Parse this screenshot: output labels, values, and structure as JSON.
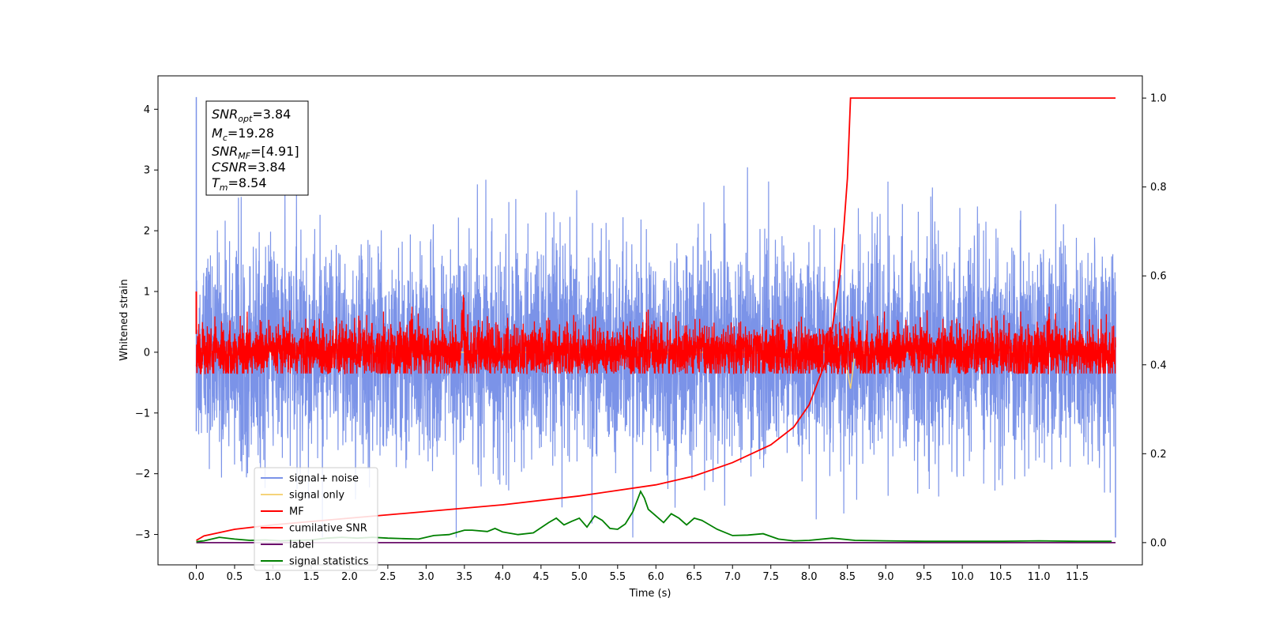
{
  "chart_data": {
    "type": "line",
    "xlabel": "Time (s)",
    "ylabel": "Whitened strain",
    "xlim": [
      -0.5,
      12.35
    ],
    "ylim": [
      -3.5,
      4.55
    ],
    "y2lim": [
      -0.05,
      1.05
    ],
    "xticks": [
      "0.0",
      "0.5",
      "1.0",
      "1.5",
      "2.0",
      "2.5",
      "3.0",
      "3.5",
      "4.0",
      "4.5",
      "5.0",
      "5.5",
      "6.0",
      "6.5",
      "7.0",
      "7.5",
      "8.0",
      "8.5",
      "9.0",
      "9.5",
      "10.0",
      "10.5",
      "11.0",
      "11.5"
    ],
    "yticks": [
      "−3",
      "−2",
      "−1",
      "0",
      "1",
      "2",
      "3",
      "4"
    ],
    "y2ticks": [
      "0.0",
      "0.2",
      "0.4",
      "0.6",
      "0.8",
      "1.0"
    ],
    "info_box": {
      "snr_opt": "=3.84",
      "mc": "=19.28",
      "snr_mf": "=[4.91]",
      "csnr": "=3.84",
      "tm": "=8.54"
    },
    "legend": {
      "position": "lower-left",
      "items": [
        {
          "label": "signal+ noise",
          "color": "#7b93e8"
        },
        {
          "label": "signal only",
          "color": "#f5d37a"
        },
        {
          "label": "MF",
          "color": "#ff0000"
        },
        {
          "label": "cumilative SNR",
          "color": "#ff0000"
        },
        {
          "label": "label",
          "color": "#6a0f6a"
        },
        {
          "label": "signal statistics",
          "color": "#008000"
        }
      ]
    },
    "series": [
      {
        "name": "signal+ noise",
        "color": "#7b93e8",
        "axis": "left",
        "x_range": [
          0.0,
          12.0
        ],
        "approx_amplitude_std": 0.85,
        "peak_min": -3.05,
        "peak_max": 4.2
      },
      {
        "name": "signal only",
        "color": "#f5d37a",
        "axis": "left",
        "x": [
          0.0,
          8.3,
          8.4,
          8.5,
          8.54,
          8.6,
          12.0
        ],
        "y": [
          0.0,
          0.0,
          0.1,
          -0.3,
          -0.6,
          0.0,
          0.0
        ]
      },
      {
        "name": "MF",
        "color": "#ff0000",
        "axis": "left",
        "x_range": [
          0.0,
          12.0
        ],
        "approx_amplitude_std": 0.22,
        "peak_min": -0.35,
        "peak_max": 1.0
      },
      {
        "name": "cumilative SNR",
        "color": "#ff0000",
        "axis": "right",
        "x": [
          0.0,
          0.1,
          0.5,
          1.0,
          2.0,
          3.0,
          4.0,
          5.0,
          6.0,
          6.5,
          7.0,
          7.5,
          7.8,
          8.0,
          8.2,
          8.3,
          8.4,
          8.45,
          8.5,
          8.54,
          12.0
        ],
        "y": [
          0.005,
          0.015,
          0.03,
          0.04,
          0.055,
          0.07,
          0.085,
          0.105,
          0.13,
          0.15,
          0.18,
          0.22,
          0.26,
          0.31,
          0.4,
          0.48,
          0.6,
          0.7,
          0.82,
          1.0,
          1.0
        ]
      },
      {
        "name": "label",
        "color": "#6a0f6a",
        "axis": "right",
        "x": [
          0.0,
          12.0
        ],
        "y": [
          0.0,
          0.0
        ]
      },
      {
        "name": "signal statistics",
        "color": "#008000",
        "axis": "right",
        "x": [
          0.0,
          0.1,
          0.3,
          0.5,
          0.7,
          0.9,
          1.1,
          1.3,
          1.5,
          1.7,
          1.9,
          2.1,
          2.3,
          2.5,
          2.7,
          2.9,
          3.1,
          3.3,
          3.5,
          3.6,
          3.8,
          3.9,
          4.0,
          4.2,
          4.4,
          4.6,
          4.7,
          4.8,
          4.9,
          5.0,
          5.1,
          5.2,
          5.3,
          5.4,
          5.5,
          5.6,
          5.7,
          5.8,
          5.85,
          5.9,
          6.0,
          6.1,
          6.2,
          6.3,
          6.4,
          6.5,
          6.6,
          6.8,
          7.0,
          7.2,
          7.4,
          7.6,
          7.8,
          8.0,
          8.3,
          8.6,
          9.0,
          9.5,
          10.0,
          10.5,
          11.0,
          11.5,
          11.95
        ],
        "y": [
          0.002,
          0.004,
          0.012,
          0.008,
          0.005,
          0.006,
          0.004,
          0.005,
          0.006,
          0.01,
          0.012,
          0.01,
          0.012,
          0.01,
          0.009,
          0.008,
          0.016,
          0.018,
          0.028,
          0.028,
          0.025,
          0.032,
          0.024,
          0.018,
          0.022,
          0.045,
          0.055,
          0.04,
          0.048,
          0.055,
          0.035,
          0.06,
          0.05,
          0.032,
          0.03,
          0.042,
          0.07,
          0.115,
          0.1,
          0.075,
          0.06,
          0.045,
          0.065,
          0.055,
          0.04,
          0.055,
          0.05,
          0.03,
          0.016,
          0.017,
          0.02,
          0.008,
          0.004,
          0.005,
          0.01,
          0.005,
          0.004,
          0.003,
          0.003,
          0.003,
          0.004,
          0.003,
          0.003
        ]
      }
    ]
  }
}
